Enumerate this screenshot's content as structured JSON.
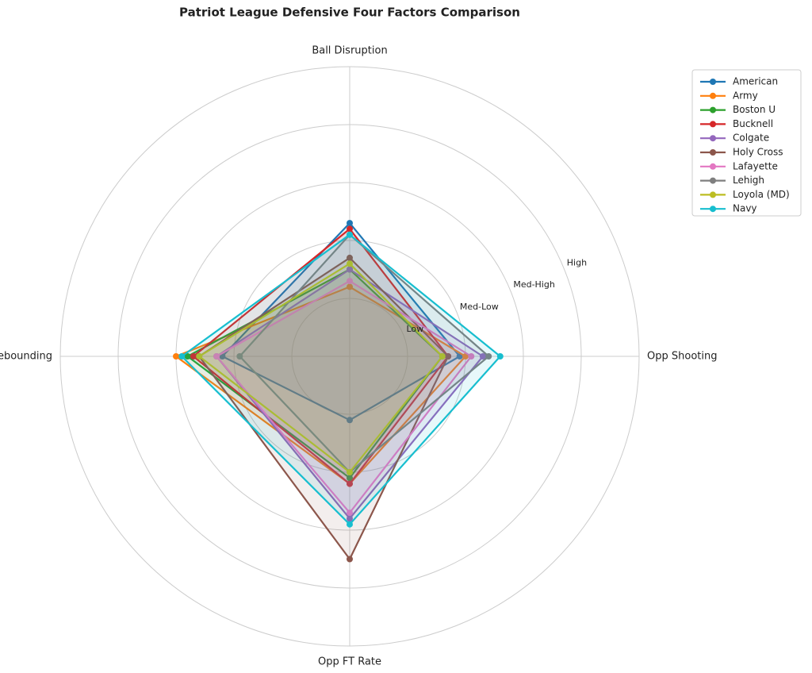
{
  "chart_data": {
    "type": "radar",
    "title": "Patriot League Defensive Four Factors Comparison",
    "categories": [
      "Ball Disruption",
      "Opp Shooting",
      "Opp FT Rate",
      "Def Rebounding"
    ],
    "ylim": [
      0,
      5
    ],
    "yticks": [
      {
        "value": 1,
        "label": "Low"
      },
      {
        "value": 2,
        "label": "Med-Low"
      },
      {
        "value": 3,
        "label": "Med-High"
      },
      {
        "value": 4,
        "label": "High"
      }
    ],
    "grid": true,
    "legend": "upper right",
    "series": [
      {
        "name": "American",
        "color": "#1f77b4",
        "values": [
          2.3,
          1.9,
          1.1,
          2.2
        ]
      },
      {
        "name": "Army",
        "color": "#ff7f0e",
        "values": [
          1.2,
          2.0,
          2.2,
          3.0
        ]
      },
      {
        "name": "Boston U",
        "color": "#2ca02c",
        "values": [
          1.5,
          1.6,
          2.1,
          2.8
        ]
      },
      {
        "name": "Bucknell",
        "color": "#d62728",
        "values": [
          2.2,
          1.7,
          2.2,
          2.7
        ]
      },
      {
        "name": "Colgate",
        "color": "#9467bd",
        "values": [
          1.5,
          2.3,
          2.8,
          2.3
        ]
      },
      {
        "name": "Holy Cross",
        "color": "#8c564b",
        "values": [
          1.7,
          1.7,
          3.5,
          2.6
        ]
      },
      {
        "name": "Lafayette",
        "color": "#e377c2",
        "values": [
          1.3,
          2.1,
          2.7,
          2.3
        ]
      },
      {
        "name": "Lehigh",
        "color": "#7f7f7f",
        "values": [
          2.1,
          2.4,
          2.0,
          1.9
        ]
      },
      {
        "name": "Loyola (MD)",
        "color": "#bcbd22",
        "values": [
          1.6,
          1.6,
          2.0,
          2.6
        ]
      },
      {
        "name": "Navy",
        "color": "#17becf",
        "values": [
          2.1,
          2.6,
          2.9,
          2.9
        ]
      }
    ]
  }
}
